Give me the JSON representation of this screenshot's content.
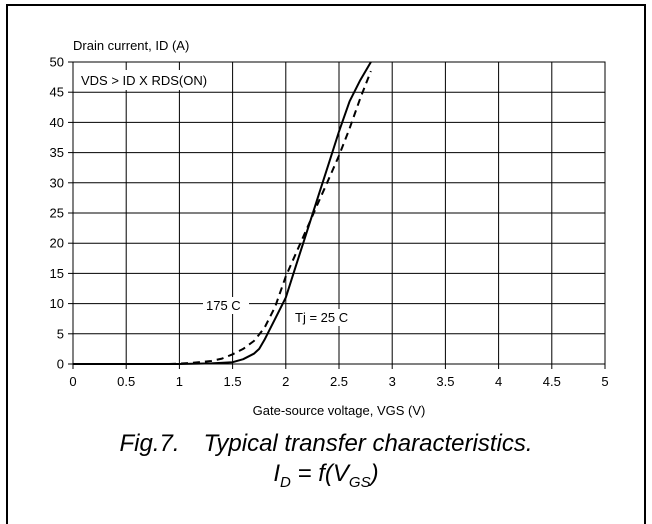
{
  "chart_data": {
    "type": "line",
    "ylabel": "Drain current, ID (A)",
    "xlabel": "Gate-source voltage, VGS (V)",
    "xlim": [
      0,
      5
    ],
    "ylim": [
      0,
      50
    ],
    "xticks": [
      "0",
      "0.5",
      "1",
      "1.5",
      "2",
      "2.5",
      "3",
      "3.5",
      "4",
      "4.5",
      "5"
    ],
    "yticks": [
      "0",
      "5",
      "10",
      "15",
      "20",
      "25",
      "30",
      "35",
      "40",
      "45",
      "50"
    ],
    "grid": true,
    "condition_label": "VDS > ID X RDS(ON)",
    "series": [
      {
        "name": "Tj = 25 C",
        "style": "solid",
        "x": [
          0,
          1.0,
          1.3,
          1.5,
          1.6,
          1.7,
          1.75,
          1.8,
          1.9,
          2.0,
          2.1,
          2.2,
          2.3,
          2.4,
          2.5,
          2.6,
          2.7,
          2.8
        ],
        "y": [
          0,
          0,
          0.1,
          0.3,
          0.8,
          1.7,
          2.5,
          4.0,
          7.5,
          11.0,
          16.5,
          22.0,
          27.5,
          33.0,
          38.5,
          43.5,
          47.0,
          50.0
        ]
      },
      {
        "name": "175 C",
        "style": "dashed",
        "x": [
          0,
          0.9,
          1.1,
          1.3,
          1.4,
          1.5,
          1.6,
          1.7,
          1.8,
          1.9,
          2.0,
          2.1,
          2.2,
          2.3,
          2.4,
          2.5,
          2.6,
          2.7,
          2.8
        ],
        "y": [
          0,
          0,
          0.15,
          0.5,
          0.9,
          1.6,
          2.5,
          3.8,
          6.0,
          9.5,
          14.5,
          18.5,
          22.5,
          26.5,
          30.5,
          34.5,
          39.0,
          44.0,
          48.5
        ]
      }
    ]
  },
  "caption": {
    "fig_label": "Fig.7.",
    "title": "Typical transfer characteristics.",
    "eq_i": "I",
    "eq_i_sub": "D",
    "eq_mid": " = f(V",
    "eq_v_sub": "GS",
    "eq_end": ")"
  }
}
